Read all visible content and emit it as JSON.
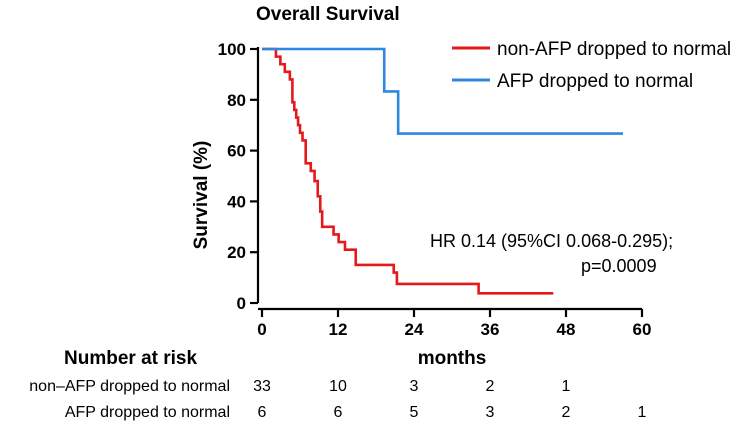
{
  "chart_data": {
    "type": "line",
    "subtype": "kaplan-meier",
    "title": "Overall Survival",
    "xlabel": "months",
    "ylabel": "Survival  (%)",
    "xlim": [
      0,
      60
    ],
    "ylim": [
      0,
      100
    ],
    "xticks": [
      0,
      12,
      24,
      36,
      48,
      60
    ],
    "yticks": [
      0,
      20,
      40,
      60,
      80,
      100
    ],
    "legend_position": "top-right",
    "series": [
      {
        "name": "non-AFP dropped to normal",
        "color": "#e31a1c",
        "x": [
          0,
          2.2,
          2.9,
          3.6,
          4.4,
          4.8,
          5.1,
          5.4,
          5.7,
          6.0,
          6.4,
          6.9,
          7.7,
          8.3,
          8.8,
          9.2,
          9.5,
          11.3,
          12.1,
          13.1,
          14.8,
          20.8,
          21.3,
          34.2,
          46.0
        ],
        "y": [
          100,
          97,
          94,
          91,
          88,
          79,
          76,
          73,
          70,
          67,
          64,
          55,
          52,
          48,
          42,
          36,
          30,
          27,
          24,
          21,
          15,
          12,
          7.5,
          3.8,
          3.8
        ]
      },
      {
        "name": "AFP dropped to normal",
        "color": "#2e86de",
        "x": [
          0,
          19.3,
          21.5,
          57.0
        ],
        "y": [
          100,
          83.3,
          66.7,
          66.7
        ]
      }
    ],
    "annotations": [
      "HR 0.14 (95%CI 0.068-0.295);",
      "p=0.0009"
    ]
  },
  "risk_table": {
    "title": "Number at risk",
    "rows": [
      {
        "label": "non–AFP dropped to normal",
        "values": [
          "33",
          "10",
          "3",
          "2",
          "1",
          ""
        ]
      },
      {
        "label": "AFP dropped to normal",
        "values": [
          "6",
          "6",
          "5",
          "3",
          "2",
          "1"
        ]
      }
    ]
  }
}
